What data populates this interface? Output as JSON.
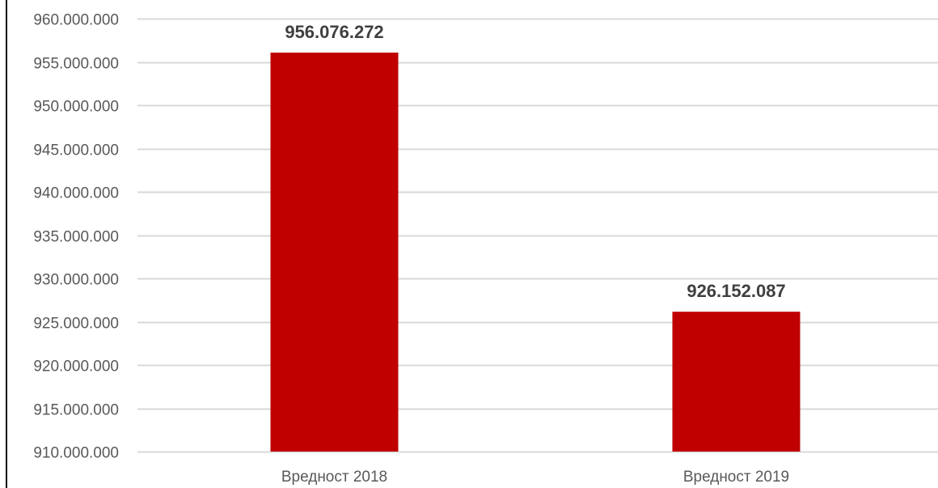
{
  "chart_data": {
    "type": "bar",
    "title": "",
    "xlabel": "",
    "ylabel": "",
    "categories": [
      "Вредност 2018",
      "Вредност 2019"
    ],
    "values": [
      956076272,
      926152087
    ],
    "value_labels": [
      "956.076.272",
      "926.152.087"
    ],
    "ylim": [
      910000000,
      960000000
    ],
    "yticks": [
      910000000,
      915000000,
      920000000,
      925000000,
      930000000,
      935000000,
      940000000,
      945000000,
      950000000,
      955000000,
      960000000
    ],
    "ytick_labels": [
      "910.000.000",
      "915.000.000",
      "920.000.000",
      "925.000.000",
      "930.000.000",
      "935.000.000",
      "940.000.000",
      "945.000.000",
      "950.000.000",
      "955.000.000",
      "960.000.000"
    ],
    "grid": true,
    "legend": false,
    "colors": {
      "bar": "#C00000",
      "grid": "#D9D9D9",
      "axis_text": "#595959",
      "data_label": "#404040",
      "frame": "#000000"
    }
  }
}
